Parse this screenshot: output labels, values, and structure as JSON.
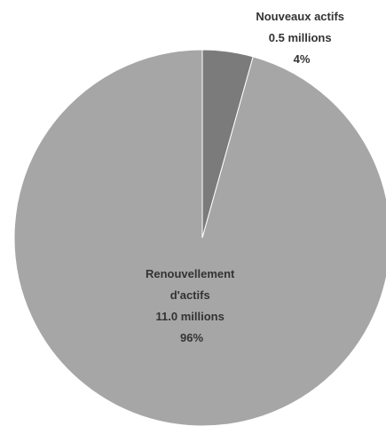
{
  "chart_data": {
    "type": "pie",
    "title": "",
    "unit": "millions",
    "slices": [
      {
        "label_lines": [
          "Nouveaux actifs",
          "0.5 millions",
          "4%"
        ],
        "value": 0.5,
        "percent": 4,
        "color": "#7b7b7b"
      },
      {
        "label_lines": [
          "Renouvellement",
          "d'actifs",
          "11.0 millions",
          "96%"
        ],
        "value": 11.0,
        "percent": 96,
        "color": "#a6a6a6"
      }
    ],
    "slice_border_color": "#ffffff",
    "start_angle": "12 o'clock, clockwise"
  }
}
